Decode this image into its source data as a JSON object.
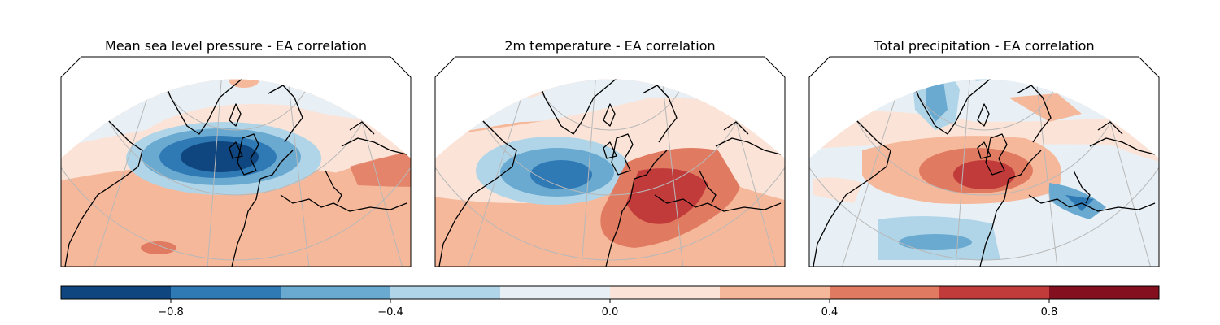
{
  "chart_data": {
    "type": "heatmap",
    "panels": [
      {
        "title": "Mean sea level pressure - EA correlation"
      },
      {
        "title": "2m temperature - EA correlation"
      },
      {
        "title": "Total precipitation - EA correlation"
      }
    ],
    "colorbar": {
      "orientation": "horizontal",
      "range": [
        -1.0,
        1.0
      ],
      "boundaries": [
        -1.0,
        -0.8,
        -0.6,
        -0.4,
        -0.2,
        0.0,
        0.2,
        0.4,
        0.6,
        0.8,
        1.0
      ],
      "colors": [
        "#0f467f",
        "#2f79b5",
        "#6aaad1",
        "#b0d5e8",
        "#e8f0f6",
        "#fbe4d7",
        "#f6b89a",
        "#e07a61",
        "#c23b3b",
        "#84101f"
      ],
      "ticks": [
        -0.8,
        -0.4,
        0.0,
        0.4,
        0.8
      ],
      "tick_labels": [
        "−0.8",
        "−0.4",
        "0.0",
        "0.4",
        "0.8"
      ]
    }
  }
}
